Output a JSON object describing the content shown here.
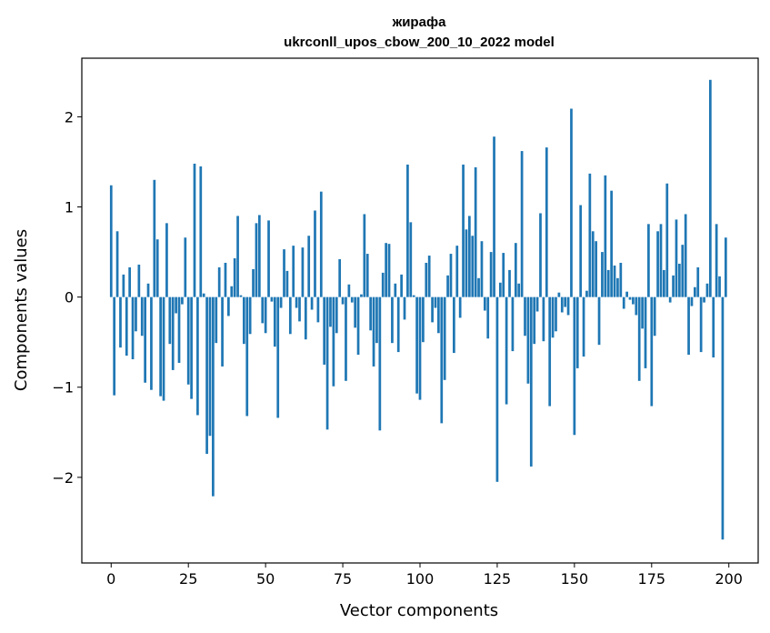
{
  "chart_data": {
    "type": "bar",
    "title": "жирафа",
    "subtitle": "ukrconll_upos_cbow_200_10_2022 model",
    "xlabel": "Vector components",
    "ylabel": "Components values",
    "xlim": [
      -9.5,
      209.5
    ],
    "ylim": [
      -2.95,
      2.65
    ],
    "xticks": [
      0,
      25,
      50,
      75,
      100,
      125,
      150,
      175,
      200
    ],
    "xtick_labels": [
      "0",
      "25",
      "50",
      "75",
      "100",
      "125",
      "150",
      "175",
      "200"
    ],
    "yticks": [
      -2,
      -1,
      0,
      1,
      2
    ],
    "ytick_labels": [
      "−2",
      "−1",
      "0",
      "1",
      "2"
    ],
    "bar_color": "#1f77b4",
    "grid": false,
    "x": [
      0,
      1,
      2,
      3,
      4,
      5,
      6,
      7,
      8,
      9,
      10,
      11,
      12,
      13,
      14,
      15,
      16,
      17,
      18,
      19,
      20,
      21,
      22,
      23,
      24,
      25,
      26,
      27,
      28,
      29,
      30,
      31,
      32,
      33,
      34,
      35,
      36,
      37,
      38,
      39,
      40,
      41,
      42,
      43,
      44,
      45,
      46,
      47,
      48,
      49,
      50,
      51,
      52,
      53,
      54,
      55,
      56,
      57,
      58,
      59,
      60,
      61,
      62,
      63,
      64,
      65,
      66,
      67,
      68,
      69,
      70,
      71,
      72,
      73,
      74,
      75,
      76,
      77,
      78,
      79,
      80,
      81,
      82,
      83,
      84,
      85,
      86,
      87,
      88,
      89,
      90,
      91,
      92,
      93,
      94,
      95,
      96,
      97,
      98,
      99,
      100,
      101,
      102,
      103,
      104,
      105,
      106,
      107,
      108,
      109,
      110,
      111,
      112,
      113,
      114,
      115,
      116,
      117,
      118,
      119,
      120,
      121,
      122,
      123,
      124,
      125,
      126,
      127,
      128,
      129,
      130,
      131,
      132,
      133,
      134,
      135,
      136,
      137,
      138,
      139,
      140,
      141,
      142,
      143,
      144,
      145,
      146,
      147,
      148,
      149,
      150,
      151,
      152,
      153,
      154,
      155,
      156,
      157,
      158,
      159,
      160,
      161,
      162,
      163,
      164,
      165,
      166,
      167,
      168,
      169,
      170,
      171,
      172,
      173,
      174,
      175,
      176,
      177,
      178,
      179,
      180,
      181,
      182,
      183,
      184,
      185,
      186,
      187,
      188,
      189,
      190,
      191,
      192,
      193,
      194,
      195,
      196,
      197,
      198,
      199
    ],
    "values": [
      1.24,
      -1.09,
      0.73,
      -0.56,
      0.25,
      -0.65,
      0.33,
      -0.69,
      -0.38,
      0.36,
      -0.43,
      -0.95,
      0.15,
      -1.03,
      1.3,
      0.64,
      -1.1,
      -1.15,
      0.82,
      -0.52,
      -0.81,
      -0.18,
      -0.73,
      -0.08,
      0.66,
      -0.97,
      -1.13,
      1.48,
      -1.31,
      1.45,
      0.04,
      -1.74,
      -1.54,
      -2.21,
      -0.51,
      0.33,
      -0.77,
      0.38,
      -0.21,
      0.12,
      0.43,
      0.9,
      0.02,
      -0.52,
      -1.32,
      -0.41,
      0.31,
      0.82,
      0.91,
      -0.29,
      -0.4,
      0.85,
      -0.05,
      -0.55,
      -1.34,
      -0.12,
      0.53,
      0.29,
      -0.41,
      0.57,
      -0.12,
      -0.27,
      0.55,
      -0.47,
      0.68,
      -0.14,
      0.96,
      -0.28,
      1.17,
      -0.75,
      -1.47,
      -0.33,
      -0.99,
      -0.4,
      0.42,
      -0.08,
      -0.93,
      0.14,
      -0.06,
      -0.34,
      -0.64,
      0.03,
      0.92,
      0.48,
      -0.37,
      -0.77,
      -0.51,
      -1.48,
      0.27,
      0.6,
      0.59,
      -0.51,
      0.15,
      -0.61,
      0.25,
      -0.25,
      1.47,
      0.83,
      0.02,
      -1.07,
      -1.14,
      -0.5,
      0.38,
      0.46,
      -0.28,
      -0.12,
      -0.4,
      -1.4,
      -0.92,
      0.24,
      0.48,
      -0.62,
      0.57,
      -0.23,
      1.47,
      0.75,
      0.9,
      0.68,
      1.44,
      0.21,
      0.62,
      -0.15,
      -0.46,
      0.5,
      1.78,
      -2.05,
      0.16,
      0.49,
      -1.19,
      0.3,
      -0.6,
      0.6,
      0.15,
      1.62,
      -0.43,
      -0.96,
      -1.88,
      -0.52,
      -0.16,
      0.93,
      -0.49,
      1.66,
      -1.21,
      -0.45,
      -0.38,
      0.05,
      -0.17,
      -0.11,
      -0.2,
      2.09,
      -1.53,
      -0.79,
      1.02,
      -0.66,
      0.07,
      1.37,
      0.73,
      0.62,
      -0.53,
      0.5,
      1.35,
      0.3,
      1.18,
      0.35,
      0.21,
      0.38,
      -0.13,
      0.06,
      -0.03,
      -0.08,
      -0.2,
      -0.93,
      -0.35,
      -0.79,
      0.81,
      -1.21,
      -0.43,
      0.73,
      0.81,
      0.3,
      1.26,
      -0.06,
      0.24,
      0.86,
      0.37,
      0.58,
      0.92,
      -0.64,
      -0.1,
      0.11,
      0.33,
      -0.61,
      -0.06,
      0.15,
      2.41,
      -0.67,
      0.81,
      0.23,
      -2.69,
      0.66
    ]
  }
}
